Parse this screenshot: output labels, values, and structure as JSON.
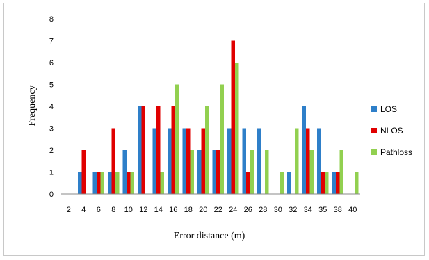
{
  "chart_data": {
    "type": "bar",
    "xlabel": "Error distance (m)",
    "ylabel": "Frequency",
    "ylim": [
      0,
      8
    ],
    "yticks": [
      "0",
      "1",
      "2",
      "3",
      "4",
      "5",
      "6",
      "7",
      "8"
    ],
    "grid": false,
    "legend_position": "right",
    "categories": [
      "2",
      "4",
      "6",
      "8",
      "10",
      "12",
      "14",
      "16",
      "18",
      "20",
      "22",
      "24",
      "26",
      "28",
      "30",
      "32",
      "34",
      "35",
      "38",
      "40"
    ],
    "series": [
      {
        "name": "LOS",
        "color": "#2e7fc9",
        "values": [
          0,
          1,
          1,
          1,
          2,
          4,
          3,
          3,
          3,
          2,
          2,
          3,
          3,
          3,
          0,
          1,
          4,
          3,
          1,
          0
        ]
      },
      {
        "name": "NLOS",
        "color": "#e00000",
        "values": [
          0,
          2,
          1,
          3,
          1,
          4,
          4,
          4,
          3,
          3,
          2,
          7,
          1,
          0,
          0,
          0,
          3,
          1,
          1,
          0
        ]
      },
      {
        "name": "Pathloss",
        "color": "#92d050",
        "values": [
          0,
          0,
          1,
          1,
          1,
          0,
          1,
          5,
          2,
          4,
          5,
          6,
          2,
          2,
          1,
          3,
          2,
          1,
          2,
          1
        ]
      }
    ]
  }
}
